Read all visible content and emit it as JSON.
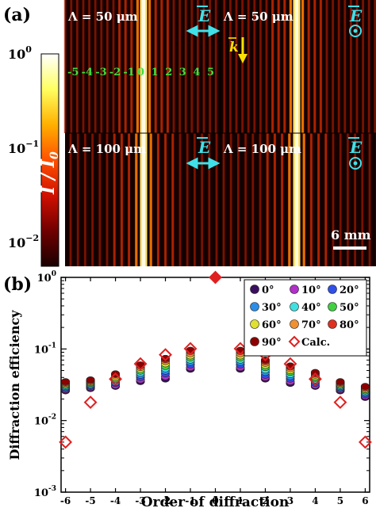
{
  "panel_a": {
    "label": "(a)",
    "colorbar": {
      "ticks": [
        {
          "base": "10",
          "exp": "0"
        },
        {
          "base": "10",
          "exp": "−1"
        },
        {
          "base": "10",
          "exp": "−2"
        }
      ],
      "label_main": "I",
      "label_slash": " / ",
      "label_sub_main": "I",
      "label_sub": "0",
      "colors": [
        "#ffffff",
        "#ffff60",
        "#ffb000",
        "#ff5000",
        "#d01000",
        "#700000",
        "#1a0000"
      ]
    },
    "subpanels": [
      {
        "title": "Λ = 50 μm",
        "polarization": "in-plane",
        "field_label": "E"
      },
      {
        "title": "Λ = 50 μm",
        "polarization": "out-of-plane",
        "field_label": "E"
      },
      {
        "title": "Λ = 100 μm",
        "polarization": "in-plane",
        "field_label": "E"
      },
      {
        "title": "Λ = 100 μm",
        "polarization": "out-of-plane",
        "field_label": "E"
      }
    ],
    "k_label": "k",
    "order_labels": [
      "-5",
      "-4",
      "-3",
      "-2",
      "-1",
      "0",
      "1",
      "2",
      "3",
      "4",
      "5"
    ],
    "scale_bar": "6 mm",
    "colors": {
      "arrow": "#40e0e8",
      "k_arrow": "#ffe000",
      "orders": "#40e040"
    }
  },
  "chart_data": {
    "type": "scatter",
    "panel_label": "(b)",
    "title": "",
    "xlabel": "Order of diffraction",
    "ylabel": "Diffraction efficiency",
    "x": [
      -6,
      -5,
      -4,
      -3,
      -2,
      -1,
      0,
      1,
      2,
      3,
      4,
      5,
      6
    ],
    "xlim": [
      -6,
      6
    ],
    "ylim": [
      0.001,
      1
    ],
    "yscale": "log",
    "y_ticks": [
      {
        "base": "10",
        "exp": "0"
      },
      {
        "base": "10",
        "exp": "-1"
      },
      {
        "base": "10",
        "exp": "-2"
      },
      {
        "base": "10",
        "exp": "-3"
      }
    ],
    "legend_placement": "top-right",
    "series": [
      {
        "name": "0°",
        "color": "#3a0e5e",
        "values": [
          0.026,
          0.028,
          0.03,
          0.035,
          0.038,
          0.052,
          1.0,
          0.052,
          0.038,
          0.033,
          0.03,
          0.026,
          0.021
        ]
      },
      {
        "name": "10°",
        "color": "#b030c8",
        "values": [
          0.027,
          0.029,
          0.031,
          0.037,
          0.041,
          0.055,
          1.0,
          0.055,
          0.04,
          0.035,
          0.031,
          0.027,
          0.022
        ]
      },
      {
        "name": "20°",
        "color": "#3050e8",
        "values": [
          0.028,
          0.03,
          0.033,
          0.04,
          0.045,
          0.06,
          1.0,
          0.06,
          0.043,
          0.038,
          0.033,
          0.028,
          0.023
        ]
      },
      {
        "name": "30°",
        "color": "#2a8ee8",
        "values": [
          0.029,
          0.031,
          0.034,
          0.043,
          0.049,
          0.065,
          1.0,
          0.065,
          0.047,
          0.041,
          0.035,
          0.029,
          0.024
        ]
      },
      {
        "name": "40°",
        "color": "#40e0e0",
        "values": [
          0.03,
          0.032,
          0.036,
          0.046,
          0.053,
          0.07,
          1.0,
          0.07,
          0.051,
          0.044,
          0.037,
          0.03,
          0.025
        ]
      },
      {
        "name": "50°",
        "color": "#40d040",
        "values": [
          0.031,
          0.033,
          0.038,
          0.049,
          0.057,
          0.075,
          1.0,
          0.075,
          0.055,
          0.047,
          0.039,
          0.031,
          0.026
        ]
      },
      {
        "name": "60°",
        "color": "#e0e030",
        "values": [
          0.032,
          0.034,
          0.04,
          0.052,
          0.062,
          0.08,
          1.0,
          0.08,
          0.059,
          0.05,
          0.041,
          0.032,
          0.027
        ]
      },
      {
        "name": "70°",
        "color": "#f09030",
        "values": [
          0.033,
          0.035,
          0.042,
          0.055,
          0.067,
          0.086,
          1.0,
          0.086,
          0.063,
          0.053,
          0.043,
          0.033,
          0.028
        ]
      },
      {
        "name": "80°",
        "color": "#e03020",
        "values": [
          0.034,
          0.036,
          0.044,
          0.058,
          0.071,
          0.092,
          1.0,
          0.092,
          0.067,
          0.056,
          0.045,
          0.034,
          0.029
        ]
      },
      {
        "name": "90°",
        "color": "#8c0000",
        "values": [
          0.035,
          0.037,
          0.045,
          0.06,
          0.074,
          0.096,
          1.0,
          0.096,
          0.07,
          0.058,
          0.047,
          0.035,
          0.03
        ]
      },
      {
        "name": "Calc.",
        "color": "#e02020",
        "marker": "open-diamond",
        "values": [
          0.005,
          0.018,
          0.038,
          0.062,
          0.083,
          0.101,
          1.0,
          0.101,
          0.083,
          0.062,
          0.038,
          0.018,
          0.005
        ]
      }
    ]
  }
}
